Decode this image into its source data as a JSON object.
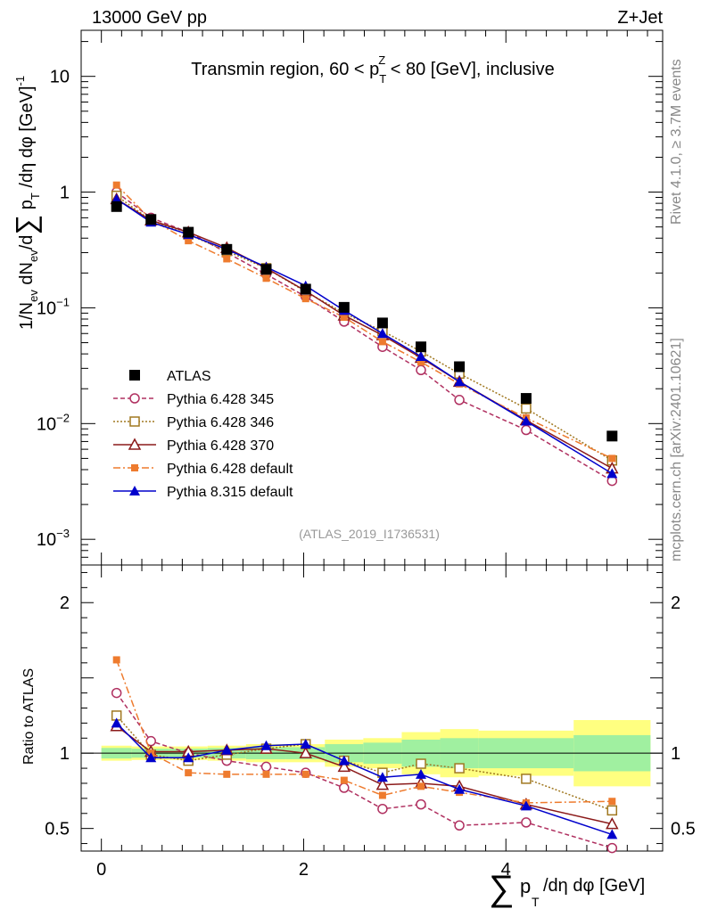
{
  "header": {
    "left": "13000 GeV pp",
    "right": "Z+Jet"
  },
  "title": "Transmin region, 60 < p",
  "title_sub": "T",
  "title_sup": "Z",
  "title_tail": " < 80 [GeV], inclusive",
  "side_top": "Rivet 4.1.0, ≥ 3.7M events",
  "side_bottom": "mcplots.cern.ch [arXiv:2401.10621]",
  "analysis_id": "(ATLAS_2019_I1736531)",
  "ylabel_main": "1/N_ev dN_ev/dΣ p_T /dη dφ [GeV]^-1",
  "ylabel_ratio": "Ratio to ATLAS",
  "xlabel": "Σ p_T /dη dφ [GeV]",
  "chart_data": {
    "type": "line",
    "xlim": [
      -0.2,
      5.55
    ],
    "ylim_main": [
      0.0006,
      25
    ],
    "ylim_ratio": [
      0.35,
      2.25
    ],
    "log_y_main": true,
    "x_ticks": [
      0,
      2,
      4
    ],
    "y_ticks_main": [
      {
        "v": 0.001,
        "base": "10",
        "exp": "−3"
      },
      {
        "v": 0.01,
        "base": "10",
        "exp": "−2"
      },
      {
        "v": 0.1,
        "base": "10",
        "exp": "−1"
      },
      {
        "v": 1,
        "base": "1",
        "exp": ""
      },
      {
        "v": 10,
        "base": "10",
        "exp": ""
      }
    ],
    "y_ticks_ratio": [
      0.5,
      1,
      2
    ],
    "x": [
      0.15,
      0.49,
      0.86,
      1.24,
      1.63,
      2.02,
      2.4,
      2.78,
      3.16,
      3.54,
      4.2,
      5.05
    ],
    "bin_edges": [
      0,
      0.3,
      0.67,
      1.05,
      1.43,
      1.82,
      2.21,
      2.59,
      2.97,
      3.35,
      3.73,
      4.67,
      5.43
    ],
    "band_inner": [
      0.035,
      0.03,
      0.03,
      0.035,
      0.04,
      0.04,
      0.06,
      0.07,
      0.09,
      0.1,
      0.1,
      0.12
    ],
    "band_outer": [
      0.05,
      0.045,
      0.045,
      0.05,
      0.06,
      0.06,
      0.09,
      0.1,
      0.14,
      0.16,
      0.15,
      0.22
    ],
    "reference": {
      "name": "ATLAS",
      "values": [
        0.75,
        0.58,
        0.45,
        0.32,
        0.215,
        0.145,
        0.101,
        0.074,
        0.046,
        0.031,
        0.0165,
        0.0078
      ]
    },
    "series": [
      {
        "name": "Pythia 6.428 345",
        "color": "#b03060",
        "dash": "5,3",
        "marker": "circle-open",
        "values": [
          1.0,
          0.6,
          0.45,
          0.3,
          0.195,
          0.125,
          0.076,
          0.046,
          0.029,
          0.016,
          0.0088,
          0.0032
        ],
        "ratio": [
          1.4,
          1.08,
          1.0,
          0.95,
          0.91,
          0.87,
          0.77,
          0.63,
          0.66,
          0.52,
          0.54,
          0.37
        ]
      },
      {
        "name": "Pythia 6.428 346",
        "color": "#a07820",
        "dash": "2,2",
        "marker": "square-open",
        "values": [
          0.93,
          0.57,
          0.43,
          0.31,
          0.22,
          0.138,
          0.09,
          0.063,
          0.042,
          0.027,
          0.0135,
          0.0048
        ],
        "ratio": [
          1.25,
          0.99,
          0.95,
          0.99,
          1.03,
          1.06,
          0.95,
          0.87,
          0.93,
          0.9,
          0.83,
          0.62
        ]
      },
      {
        "name": "Pythia 6.428 370",
        "color": "#8b1a1a",
        "dash": "",
        "marker": "triangle-open",
        "values": [
          0.87,
          0.57,
          0.45,
          0.33,
          0.22,
          0.14,
          0.086,
          0.058,
          0.037,
          0.023,
          0.0107,
          0.0041
        ],
        "ratio": [
          1.18,
          1.01,
          1.01,
          1.02,
          1.03,
          1.0,
          0.91,
          0.79,
          0.8,
          0.78,
          0.66,
          0.53
        ]
      },
      {
        "name": "Pythia 6.428 default",
        "color": "#ee7b2e",
        "dash": "8,3,2,3",
        "marker": "square-filled",
        "values": [
          1.15,
          0.58,
          0.38,
          0.265,
          0.18,
          0.12,
          0.083,
          0.051,
          0.034,
          0.022,
          0.0112,
          0.005
        ],
        "ratio": [
          1.62,
          1.0,
          0.87,
          0.86,
          0.86,
          0.86,
          0.82,
          0.72,
          0.78,
          0.74,
          0.67,
          0.68
        ]
      },
      {
        "name": "Pythia 8.315 default",
        "color": "#0000cc",
        "dash": "",
        "marker": "triangle-filled",
        "values": [
          0.87,
          0.55,
          0.43,
          0.32,
          0.225,
          0.155,
          0.095,
          0.06,
          0.038,
          0.023,
          0.0105,
          0.0037
        ],
        "ratio": [
          1.2,
          0.97,
          0.97,
          1.02,
          1.05,
          1.06,
          0.95,
          0.84,
          0.86,
          0.76,
          0.65,
          0.46
        ]
      }
    ]
  }
}
